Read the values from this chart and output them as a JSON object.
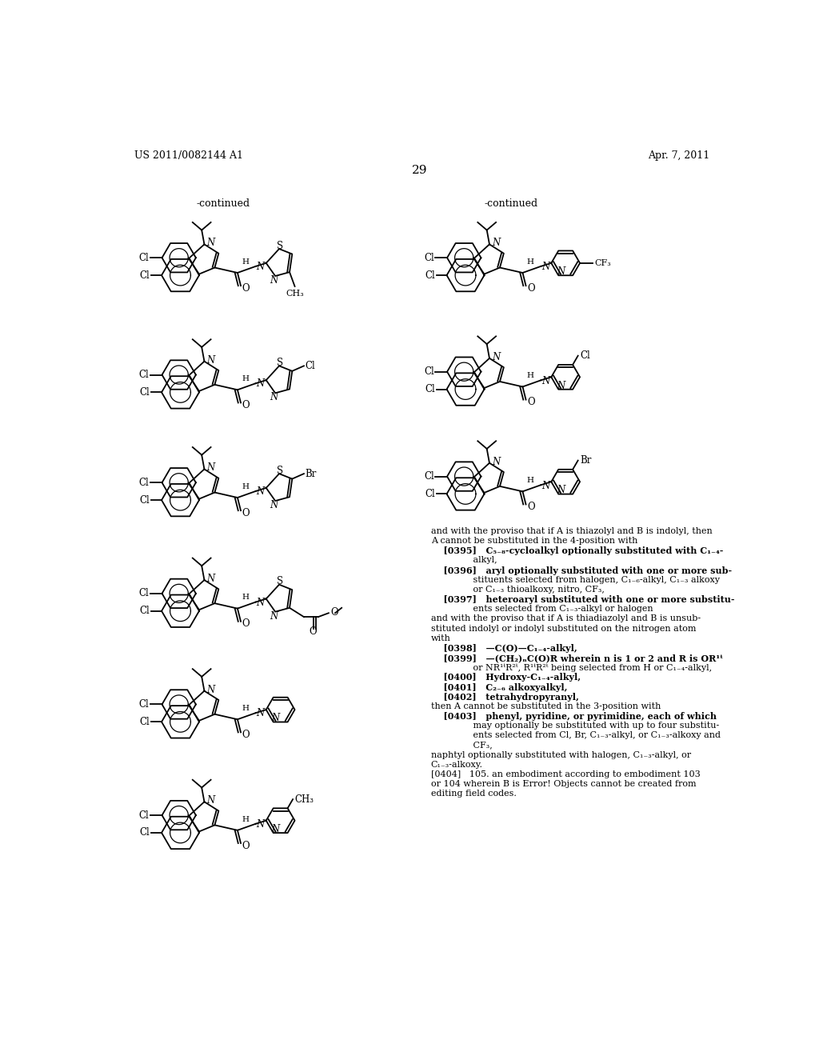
{
  "page_number": "29",
  "patent_number": "US 2011/0082144 A1",
  "patent_date": "Apr. 7, 2011",
  "background_color": "#ffffff",
  "text_color": "#000000",
  "continued_left": "-continued",
  "continued_right": "-continued",
  "right_text_lines": [
    [
      "normal",
      "and with the proviso that if A is thiazolyl and B is indolyl, then"
    ],
    [
      "normal",
      "A cannot be substituted in the 4-position with"
    ],
    [
      "bold",
      "    [0395]"
    ],
    [
      "normal_indent",
      "C5-8-cycloalkyl optionally substituted with C1-4-alkyl,"
    ],
    [
      "bold",
      "    [0396]"
    ],
    [
      "normal_indent",
      "aryl optionally substituted with one or more sub-stituents selected from halogen, C1-6-alkyl, C1-3 alkoxy or C1-3 thioalkoxy, nitro, CF3,"
    ],
    [
      "bold",
      "    [0397]"
    ],
    [
      "normal_indent",
      "heteroaryl substituted with one or more substituents selected from C1-3-alkyl or halogen"
    ],
    [
      "normal",
      "and with the proviso that if A is thiadiazolyl and B is unsub-stituted indolyl or indolyl substituted on the nitrogen atom with"
    ],
    [
      "bold",
      "    [0398]"
    ],
    [
      "normal_indent",
      "—C(O)—C1-4-alkyl,"
    ],
    [
      "bold",
      "    [0399]"
    ],
    [
      "normal_indent",
      "—(CH2)nC(O)R wherein n is 1 or 2 and R is OR1t or NR1tR2t, R1tR2t being selected from H or C1-4-alkyl,"
    ],
    [
      "bold",
      "    [0400]"
    ],
    [
      "normal_indent",
      "Hydroxy-C1-4-alkyl,"
    ],
    [
      "bold",
      "    [0401]"
    ],
    [
      "normal_indent",
      "C2-6 alkoxyalkyl,"
    ],
    [
      "bold",
      "    [0402]"
    ],
    [
      "normal_indent",
      "tetrahydropyranyl,"
    ],
    [
      "normal",
      "then A cannot be substituted in the 3-position with"
    ],
    [
      "bold",
      "    [0403]"
    ],
    [
      "normal_indent",
      "phenyl, pyridine, or pyrimidine, each of which may optionally be substituted with up to four substituents selected from Cl, Br, C1-3-alkyl, or C1-3-alkoxy and CF3,"
    ],
    [
      "normal",
      "naphtyl optionally substituted with halogen, C1-3-alkyl, or C1-3-alkoxy."
    ],
    [
      "bold",
      "[0404]"
    ],
    [
      "normal_indent",
      "105. an embodiment according to embodiment 103 or 104 wherein B is Error! Objects cannot be created from editing field codes."
    ]
  ]
}
